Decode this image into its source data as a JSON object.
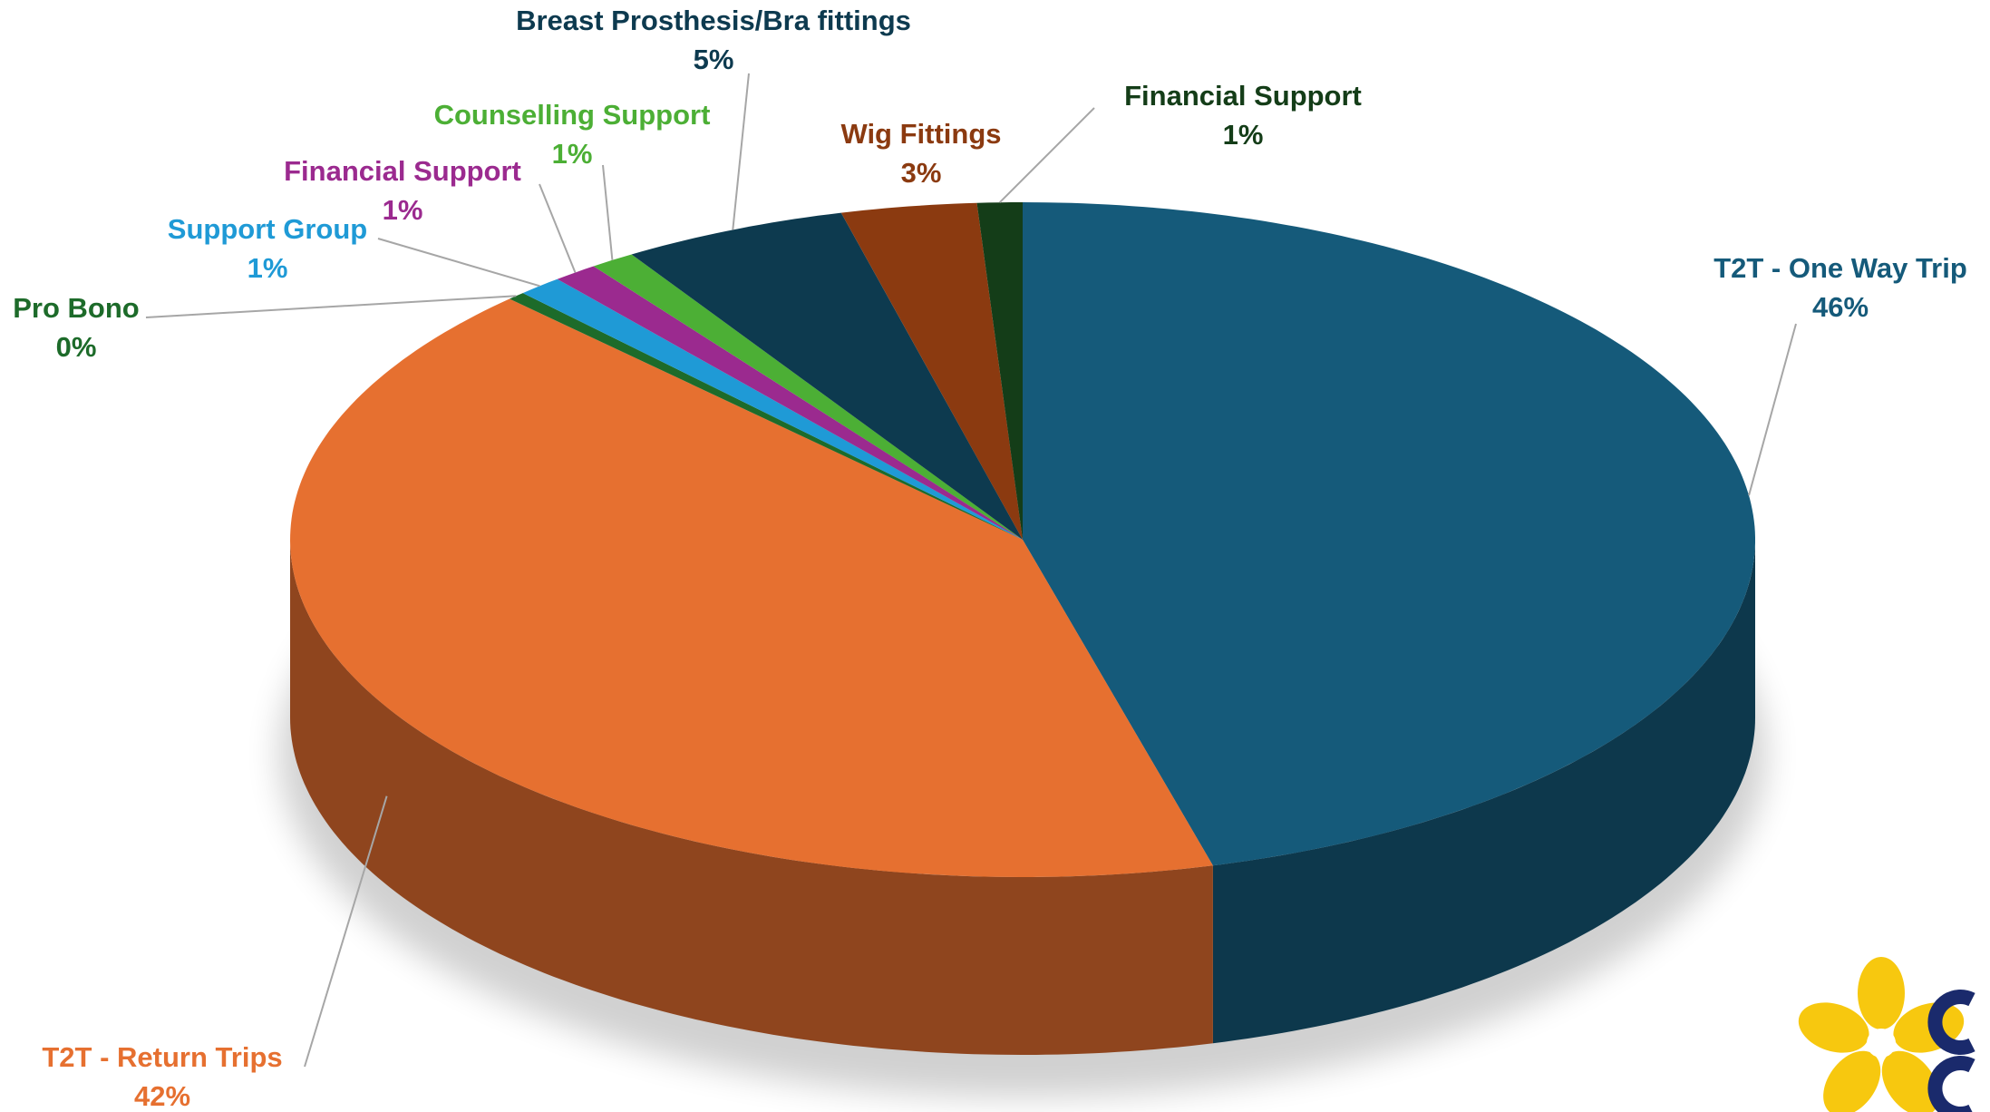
{
  "chart_data": {
    "type": "pie3d",
    "categories": [
      "T2T - One Way Trip",
      "T2T - Return Trips",
      "Pro Bono",
      "Support Group",
      "Financial Support",
      "Counselling Support",
      "Breast Prosthesis/Bra fittings",
      "Wig Fittings",
      "Financial Support"
    ],
    "values": [
      46,
      42,
      0.4,
      1,
      1,
      1,
      5,
      3,
      1
    ],
    "value_labels": [
      "46%",
      "42%",
      "0%",
      "1%",
      "1%",
      "1%",
      "5%",
      "3%",
      "1%"
    ],
    "colors": [
      "#155a7a",
      "#e67030",
      "#1d6b2a",
      "#1f9ad6",
      "#9b2a8f",
      "#4caf35",
      "#0d3a4f",
      "#8b3a10",
      "#143d18"
    ]
  }
}
